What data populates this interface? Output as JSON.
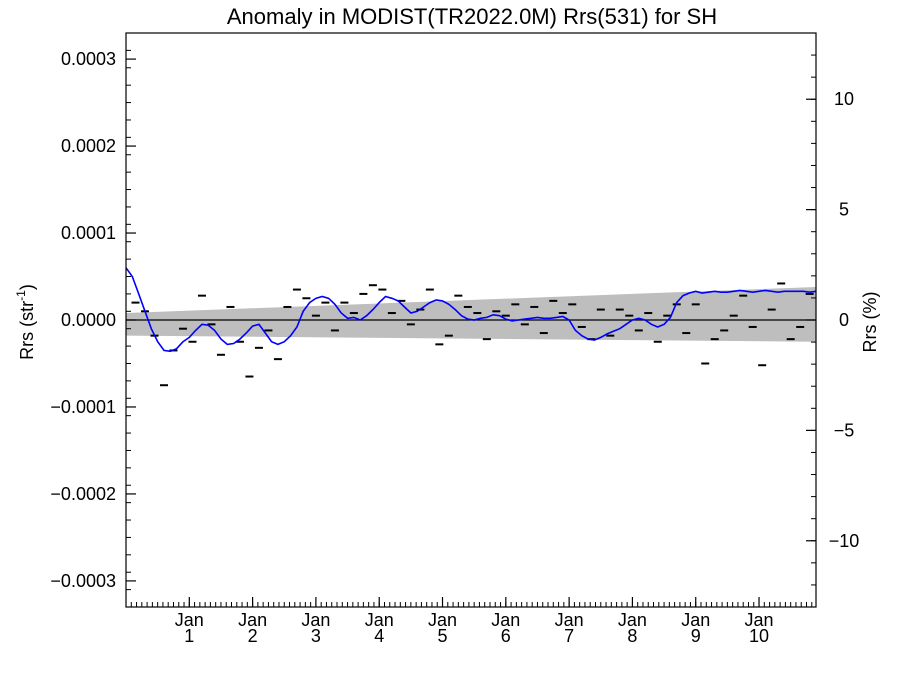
{
  "chart_data": {
    "type": "line",
    "title": "Anomaly in MODIST(TR2022.0M) Rrs(531) for SH",
    "ylabel": {
      "base": "Rrs (str",
      "sup": "-1",
      "tail": ")"
    },
    "ylabel_right": "Rrs (%)",
    "xlim": [
      0,
      10.9
    ],
    "ylim": [
      -0.00033,
      0.00033
    ],
    "ylim_right": [
      -13,
      13
    ],
    "grid": false,
    "x_ticks": [
      {
        "value": 1,
        "top": "Jan",
        "bottom": "1"
      },
      {
        "value": 2,
        "top": "Jan",
        "bottom": "2"
      },
      {
        "value": 3,
        "top": "Jan",
        "bottom": "3"
      },
      {
        "value": 4,
        "top": "Jan",
        "bottom": "4"
      },
      {
        "value": 5,
        "top": "Jan",
        "bottom": "5"
      },
      {
        "value": 6,
        "top": "Jan",
        "bottom": "6"
      },
      {
        "value": 7,
        "top": "Jan",
        "bottom": "7"
      },
      {
        "value": 8,
        "top": "Jan",
        "bottom": "8"
      },
      {
        "value": 9,
        "top": "Jan",
        "bottom": "9"
      },
      {
        "value": 10,
        "top": "Jan",
        "bottom": "10"
      }
    ],
    "y_ticks": [
      {
        "value": 0.0003,
        "label": "0.0003"
      },
      {
        "value": 0.0002,
        "label": "0.0002"
      },
      {
        "value": 0.0001,
        "label": "0.0001"
      },
      {
        "value": 0.0,
        "label": "0.0000"
      },
      {
        "value": -0.0001,
        "label": "−0.0001"
      },
      {
        "value": -0.0002,
        "label": "−0.0002"
      },
      {
        "value": -0.0003,
        "label": "−0.0003"
      }
    ],
    "y_ticks_right": [
      {
        "value": 10,
        "label": "10"
      },
      {
        "value": 5,
        "label": "5"
      },
      {
        "value": 0,
        "label": "0"
      },
      {
        "value": -5,
        "label": "−5"
      },
      {
        "value": -10,
        "label": "−10"
      }
    ],
    "band": {
      "x": [
        0,
        10.9
      ],
      "upper": [
        8e-06,
        3.8e-05
      ],
      "lower": [
        -1.8e-05,
        -2.5e-05
      ],
      "color": "#bebebe"
    },
    "zero_line": 0,
    "series": [
      {
        "kind": "markers",
        "color": "#000000",
        "x": [
          0.15,
          0.3,
          0.45,
          0.6,
          0.75,
          0.9,
          1.05,
          1.2,
          1.35,
          1.5,
          1.65,
          1.8,
          1.95,
          2.1,
          2.25,
          2.4,
          2.55,
          2.7,
          2.85,
          3.0,
          3.15,
          3.3,
          3.45,
          3.6,
          3.75,
          3.9,
          4.05,
          4.2,
          4.35,
          4.5,
          4.65,
          4.8,
          4.95,
          5.1,
          5.25,
          5.4,
          5.55,
          5.7,
          5.85,
          6.0,
          6.15,
          6.3,
          6.45,
          6.6,
          6.75,
          6.9,
          7.05,
          7.2,
          7.35,
          7.5,
          7.65,
          7.8,
          7.95,
          8.1,
          8.25,
          8.4,
          8.55,
          8.7,
          8.85,
          9.0,
          9.15,
          9.3,
          9.45,
          9.6,
          9.75,
          9.9,
          10.05,
          10.2,
          10.35,
          10.5,
          10.65,
          10.8
        ],
        "values": [
          2e-05,
          1e-05,
          -1.8e-05,
          -7.5e-05,
          -3.5e-05,
          -1e-05,
          -2.5e-05,
          2.8e-05,
          -5e-06,
          -4e-05,
          1.5e-05,
          -2.5e-05,
          -6.5e-05,
          -3.2e-05,
          -1.2e-05,
          -4.5e-05,
          1.5e-05,
          3.5e-05,
          2.5e-05,
          5e-06,
          2e-05,
          -1.2e-05,
          2e-05,
          8e-06,
          3e-05,
          4e-05,
          3.5e-05,
          8e-06,
          2.2e-05,
          -5e-06,
          1.2e-05,
          3.5e-05,
          -2.8e-05,
          -1.8e-05,
          2.8e-05,
          1.5e-05,
          8e-06,
          -2.2e-05,
          1e-05,
          5e-06,
          1.8e-05,
          -5e-06,
          1.5e-05,
          -1.5e-05,
          2.2e-05,
          8e-06,
          1.8e-05,
          -8e-06,
          -2.2e-05,
          1.2e-05,
          -1.8e-05,
          1.2e-05,
          5e-06,
          -1.2e-05,
          8e-06,
          -2.5e-05,
          5e-06,
          1.8e-05,
          -1.5e-05,
          1.8e-05,
          -5e-05,
          -2.2e-05,
          -1.2e-05,
          5e-06,
          2.8e-05,
          -8e-06,
          -5.2e-05,
          1.2e-05,
          4.2e-05,
          -2.2e-05,
          -8e-06,
          3e-05
        ]
      },
      {
        "kind": "line",
        "color": "#0000ff",
        "x": [
          0,
          0.1,
          0.2,
          0.3,
          0.4,
          0.5,
          0.6,
          0.7,
          0.8,
          0.9,
          1.0,
          1.1,
          1.2,
          1.3,
          1.4,
          1.5,
          1.6,
          1.7,
          1.8,
          1.9,
          2.0,
          2.1,
          2.2,
          2.3,
          2.4,
          2.5,
          2.6,
          2.7,
          2.8,
          2.9,
          3.0,
          3.1,
          3.2,
          3.3,
          3.4,
          3.5,
          3.6,
          3.7,
          3.8,
          3.9,
          4.0,
          4.1,
          4.2,
          4.3,
          4.4,
          4.5,
          4.6,
          4.7,
          4.8,
          4.9,
          5.0,
          5.1,
          5.2,
          5.3,
          5.4,
          5.5,
          5.6,
          5.7,
          5.8,
          5.9,
          6.0,
          6.1,
          6.2,
          6.3,
          6.4,
          6.5,
          6.6,
          6.7,
          6.8,
          6.9,
          7.0,
          7.1,
          7.2,
          7.3,
          7.4,
          7.5,
          7.6,
          7.7,
          7.8,
          7.9,
          8.0,
          8.1,
          8.2,
          8.3,
          8.4,
          8.5,
          8.6,
          8.7,
          8.8,
          8.9,
          9.0,
          9.1,
          9.2,
          9.3,
          9.4,
          9.5,
          9.6,
          9.7,
          9.8,
          9.9,
          10.0,
          10.1,
          10.2,
          10.3,
          10.4,
          10.5,
          10.6,
          10.7,
          10.8,
          10.9
        ],
        "values": [
          6e-05,
          5e-05,
          3e-05,
          1e-05,
          -1e-05,
          -2.5e-05,
          -3.5e-05,
          -3.6e-05,
          -3.3e-05,
          -2.5e-05,
          -2e-05,
          -1.2e-05,
          -5e-06,
          -6e-06,
          -1.2e-05,
          -2.2e-05,
          -2.8e-05,
          -2.7e-05,
          -2.2e-05,
          -1.5e-05,
          -7e-06,
          -5e-06,
          -1.5e-05,
          -2.5e-05,
          -2.8e-05,
          -2.5e-05,
          -1.8e-05,
          -8e-06,
          1e-05,
          2e-05,
          2.5e-05,
          2.7e-05,
          2.5e-05,
          1.8e-05,
          8e-06,
          2e-06,
          3e-06,
          0.0,
          5e-06,
          1.2e-05,
          2e-05,
          2.7e-05,
          2.5e-05,
          2.2e-05,
          1.5e-05,
          8e-06,
          1e-05,
          1.5e-05,
          2e-05,
          2.3e-05,
          2.2e-05,
          1.8e-05,
          1.2e-05,
          5e-06,
          1e-06,
          0.0,
          2e-06,
          3e-06,
          6e-06,
          5e-06,
          1e-06,
          -1e-06,
          0.0,
          1e-06,
          2e-06,
          3e-06,
          2e-06,
          2e-06,
          3e-06,
          4e-06,
          0.0,
          -1.2e-05,
          -1.8e-05,
          -2.2e-05,
          -2.3e-05,
          -2e-05,
          -1.6e-05,
          -1.3e-05,
          -1e-05,
          -5e-06,
          0.0,
          2e-06,
          0.0,
          -5e-06,
          -8e-06,
          -5e-06,
          3e-06,
          2e-05,
          2.8e-05,
          3.1e-05,
          3.3e-05,
          3.1e-05,
          3.2e-05,
          3.3e-05,
          3.2e-05,
          3.2e-05,
          3.3e-05,
          3.4e-05,
          3.3e-05,
          3.2e-05,
          3.3e-05,
          3.4e-05,
          3.3e-05,
          3.2e-05,
          3.3e-05,
          3.3e-05,
          3.3e-05,
          3.3e-05,
          3.2e-05,
          3.3e-05
        ]
      }
    ]
  }
}
